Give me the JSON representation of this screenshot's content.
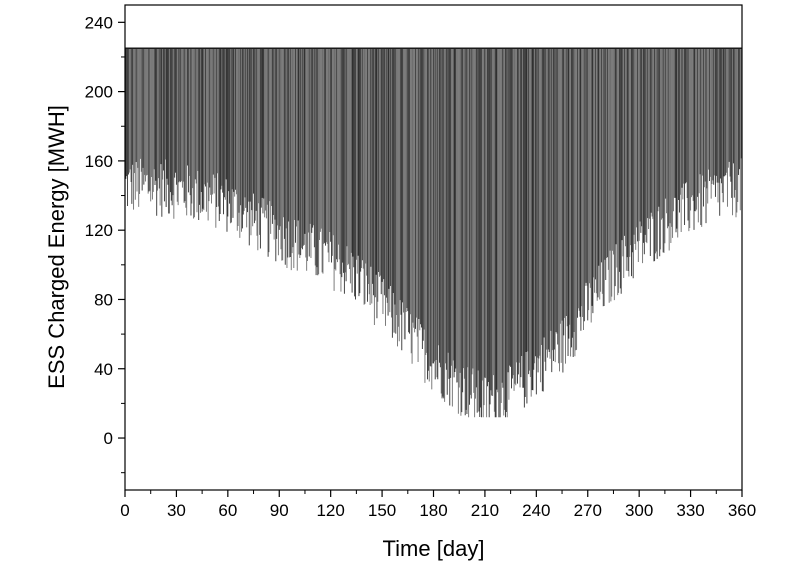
{
  "chart_data": {
    "type": "line",
    "title": "",
    "xlabel": "Time [day]",
    "ylabel": "ESS Charged Energy [MWH]",
    "xlim": [
      0,
      360
    ],
    "ylim": [
      -30,
      250
    ],
    "xticks": [
      0,
      30,
      60,
      90,
      120,
      150,
      180,
      210,
      240,
      270,
      300,
      330,
      360
    ],
    "xtick_labels": [
      "0",
      "30",
      "60",
      "90",
      "120",
      "150",
      "180",
      "210",
      "240",
      "270",
      "300",
      "330",
      "360"
    ],
    "yticks": [
      0,
      40,
      80,
      120,
      160,
      200,
      240
    ],
    "ytick_labels": [
      "0",
      "40",
      "80",
      "120",
      "160",
      "200",
      "240"
    ],
    "grid": false,
    "legend": "none",
    "series_color": "#303030",
    "max_charge": 225,
    "daily_min": {
      "x": [
        0,
        15,
        30,
        45,
        60,
        75,
        90,
        105,
        120,
        135,
        150,
        165,
        180,
        195,
        210,
        225,
        240,
        255,
        270,
        285,
        300,
        315,
        330,
        345,
        360
      ],
      "y": [
        140,
        140,
        138,
        134,
        130,
        120,
        112,
        104,
        98,
        88,
        72,
        55,
        38,
        25,
        15,
        20,
        35,
        48,
        70,
        90,
        105,
        118,
        128,
        135,
        140
      ]
    }
  }
}
